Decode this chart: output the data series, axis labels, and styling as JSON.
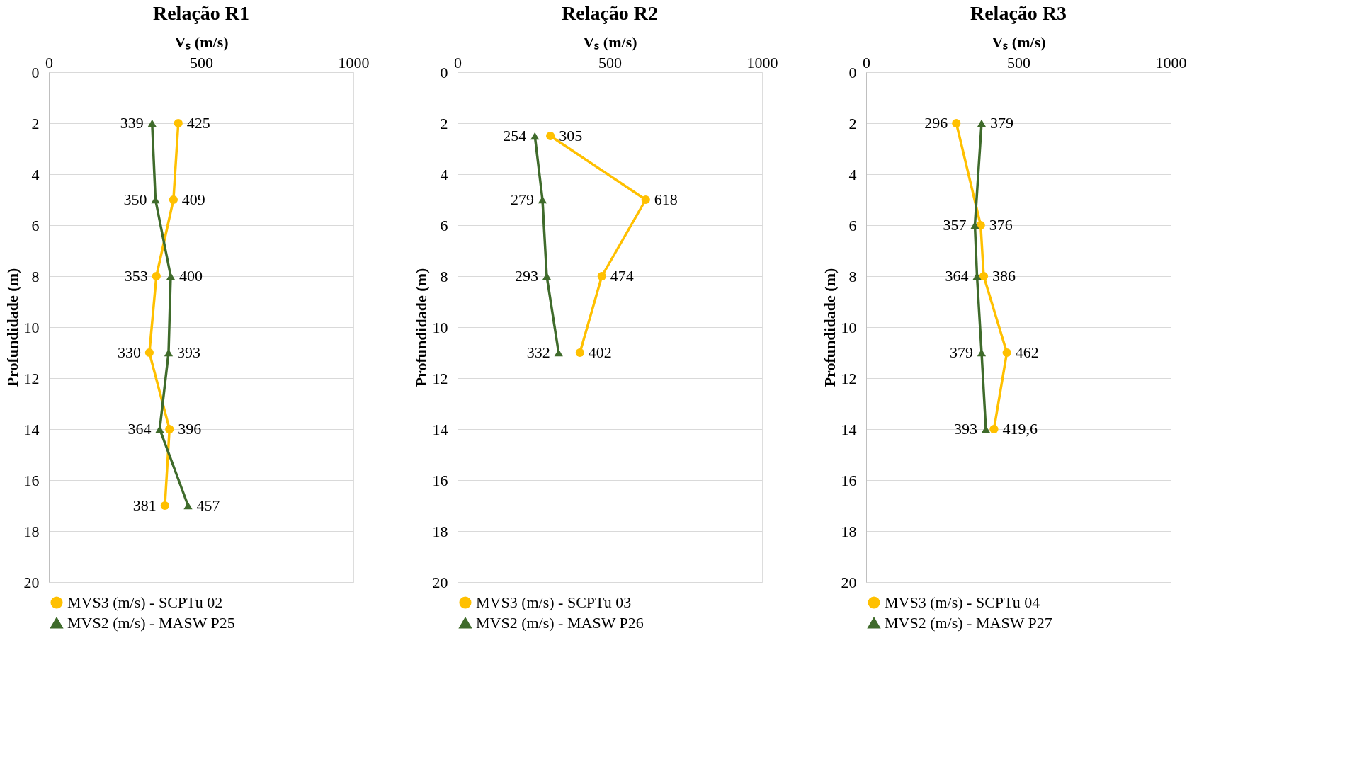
{
  "chart_data": [
    {
      "type": "line",
      "orientation": "horizontal",
      "title": "Relação R1",
      "xlabel": "Vₛ (m/s)",
      "ylabel": "Profundidade (m)",
      "xlim": [
        0,
        1000
      ],
      "xticks": [
        0,
        500,
        1000
      ],
      "ylim": [
        20,
        0
      ],
      "yticks": [
        0,
        2,
        4,
        6,
        8,
        10,
        12,
        14,
        16,
        18,
        20
      ],
      "grid": "y",
      "legend": "bottom",
      "series": [
        {
          "name": "MVS3 (m/s) - SCPTu 02",
          "color": "#ffc000",
          "marker": "circle",
          "x": [
            2,
            5,
            8,
            11,
            14,
            17
          ],
          "values": [
            425,
            409,
            353,
            330,
            396,
            381
          ],
          "value_labels": [
            "425",
            "409",
            "353",
            "330",
            "396",
            "381"
          ]
        },
        {
          "name": "MVS2 (m/s) - MASW P25",
          "color": "#3f6b2b",
          "marker": "triangle",
          "x": [
            2,
            5,
            8,
            11,
            14,
            17
          ],
          "values": [
            339,
            350,
            400,
            393,
            364,
            457
          ],
          "value_labels": [
            "339",
            "350",
            "400",
            "393",
            "364",
            "457"
          ]
        }
      ]
    },
    {
      "type": "line",
      "orientation": "horizontal",
      "title": "Relação R2",
      "xlabel": "Vₛ (m/s)",
      "ylabel": "Profundidade (m)",
      "xlim": [
        0,
        1000
      ],
      "xticks": [
        0,
        500,
        1000
      ],
      "ylim": [
        20,
        0
      ],
      "yticks": [
        0,
        2,
        4,
        6,
        8,
        10,
        12,
        14,
        16,
        18,
        20
      ],
      "grid": "y",
      "legend": "bottom",
      "series": [
        {
          "name": "MVS3 (m/s) - SCPTu 03",
          "color": "#ffc000",
          "marker": "circle",
          "x": [
            2.5,
            5,
            8,
            11
          ],
          "values": [
            305,
            618,
            474,
            402
          ],
          "value_labels": [
            "305",
            "618",
            "474",
            "402"
          ]
        },
        {
          "name": "MVS2 (m/s) - MASW P26",
          "color": "#3f6b2b",
          "marker": "triangle",
          "x": [
            2.5,
            5,
            8,
            11
          ],
          "values": [
            254,
            279,
            293,
            332
          ],
          "value_labels": [
            "254",
            "279",
            "293",
            "332"
          ]
        }
      ]
    },
    {
      "type": "line",
      "orientation": "horizontal",
      "title": "Relação R3",
      "xlabel": "Vₛ (m/s)",
      "ylabel": "Profundidade (m)",
      "xlim": [
        0,
        1000
      ],
      "xticks": [
        0,
        500,
        1000
      ],
      "ylim": [
        20,
        0
      ],
      "yticks": [
        0,
        2,
        4,
        6,
        8,
        10,
        12,
        14,
        16,
        18,
        20
      ],
      "grid": "y",
      "legend": "bottom",
      "series": [
        {
          "name": "MVS3 (m/s) - SCPTu 04",
          "color": "#ffc000",
          "marker": "circle",
          "x": [
            2,
            6,
            8,
            11,
            14
          ],
          "values": [
            296,
            376,
            386,
            462,
            419.6
          ],
          "value_labels": [
            "296",
            "376",
            "386",
            "462",
            "419,6"
          ]
        },
        {
          "name": "MVS2 (m/s) - MASW P27",
          "color": "#3f6b2b",
          "marker": "triangle",
          "x": [
            2,
            6,
            8,
            11,
            14
          ],
          "values": [
            379,
            357,
            364,
            379,
            393
          ],
          "value_labels": [
            "379",
            "357",
            "364",
            "379",
            "393"
          ]
        }
      ]
    }
  ]
}
